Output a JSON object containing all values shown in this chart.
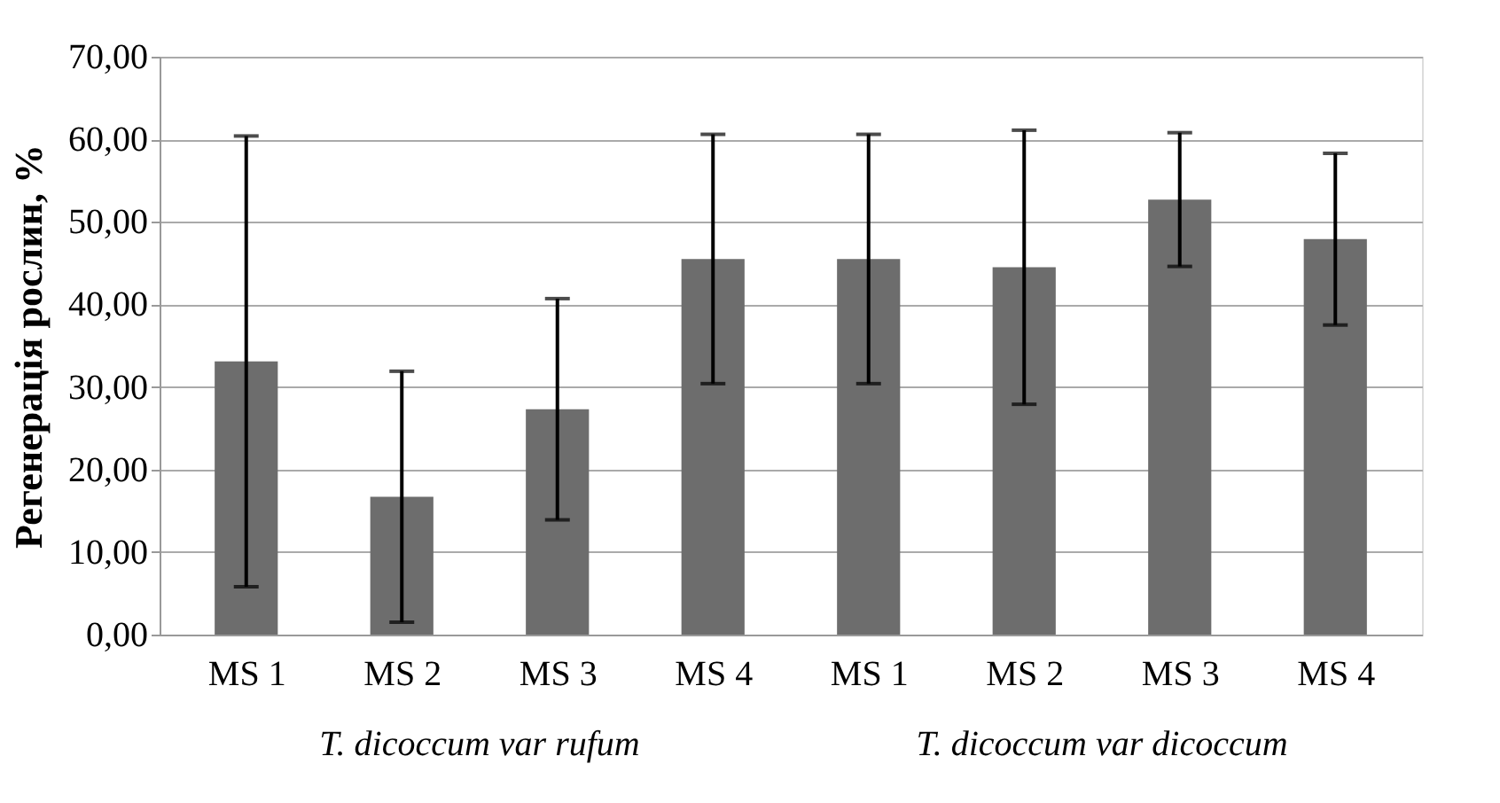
{
  "chart_data": {
    "type": "bar",
    "ylabel": "Регенерація рослин, %",
    "categories": [
      "MS 1",
      "MS 2",
      "MS 3",
      "MS 4",
      "MS 1",
      "MS 2",
      "MS 3",
      "MS 4"
    ],
    "values": [
      33.1,
      16.7,
      27.3,
      45.5,
      45.5,
      44.5,
      52.7,
      47.9
    ],
    "errors": [
      27.3,
      15.2,
      13.4,
      15.1,
      15.1,
      16.6,
      8.1,
      10.4
    ],
    "color": "#6d6d6d",
    "ylim": [
      0,
      70
    ],
    "yticks": [
      {
        "value": 0,
        "label": "0,00"
      },
      {
        "value": 10,
        "label": "10,00"
      },
      {
        "value": 20,
        "label": "20,00"
      },
      {
        "value": 30,
        "label": "30,00"
      },
      {
        "value": 40,
        "label": "40,00"
      },
      {
        "value": 50,
        "label": "50,00"
      },
      {
        "value": 60,
        "label": "60,00"
      },
      {
        "value": 70,
        "label": "70,00"
      }
    ],
    "grid": "y",
    "annotations": [
      "T. dicoccum var rufum",
      "T. dicoccum var dicoccum"
    ]
  }
}
